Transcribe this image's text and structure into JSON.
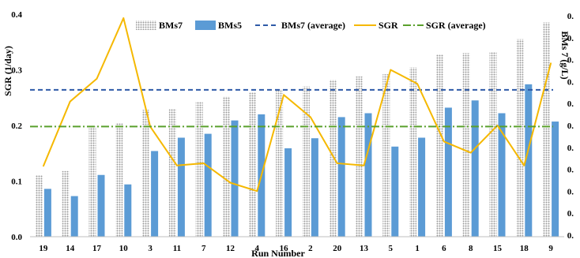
{
  "chart_data": {
    "type": "bar",
    "xlabel": "Run Number",
    "y_left_label": "SGR (1/day)",
    "y_right_label": "BMs 7 (g/L)",
    "ylim_left": [
      0.0,
      0.4
    ],
    "y_left_ticks": [
      "0.0",
      "0.1",
      "0.2",
      "0.3",
      "0.4"
    ],
    "y_right_ticks": [
      "0.",
      "0.",
      "0.",
      "0.",
      "0.",
      "0.",
      "0.",
      "0.",
      "0.",
      "0.",
      "0."
    ],
    "grid": false,
    "legend_position": "top",
    "categories": [
      "19",
      "14",
      "17",
      "10",
      "3",
      "11",
      "7",
      "12",
      "4",
      "16",
      "2",
      "20",
      "13",
      "5",
      "1",
      "6",
      "8",
      "15",
      "18",
      "9"
    ],
    "series": [
      {
        "name": "BMs7",
        "kind": "bar",
        "pattern": "dotted-gray",
        "color": "#b0b0b0",
        "values": [
          0.11,
          0.118,
          0.198,
          0.205,
          0.228,
          0.23,
          0.242,
          0.252,
          0.259,
          0.265,
          0.27,
          0.282,
          0.288,
          0.292,
          0.304,
          0.328,
          0.33,
          0.332,
          0.355,
          0.385
        ]
      },
      {
        "name": "BMs5",
        "kind": "bar",
        "color": "#5b9bd5",
        "values": [
          0.086,
          0.073,
          0.111,
          0.094,
          0.154,
          0.178,
          0.185,
          0.209,
          0.22,
          0.159,
          0.177,
          0.215,
          0.222,
          0.162,
          0.178,
          0.232,
          0.245,
          0.222,
          0.274,
          0.207
        ]
      },
      {
        "name": "BMs7 (average)",
        "kind": "hline",
        "color": "#2e5aa8",
        "dash": "6,4",
        "value": 0.264
      },
      {
        "name": "SGR",
        "kind": "line",
        "color": "#f5b800",
        "values": [
          0.127,
          0.243,
          0.284,
          0.393,
          0.198,
          0.128,
          0.132,
          0.097,
          0.082,
          0.255,
          0.215,
          0.132,
          0.128,
          0.3,
          0.275,
          0.171,
          0.151,
          0.2,
          0.128,
          0.312
        ]
      },
      {
        "name": "SGR (average)",
        "kind": "hline",
        "color": "#5aa02c",
        "dash": "10,3,2,3",
        "value": 0.198
      }
    ]
  }
}
